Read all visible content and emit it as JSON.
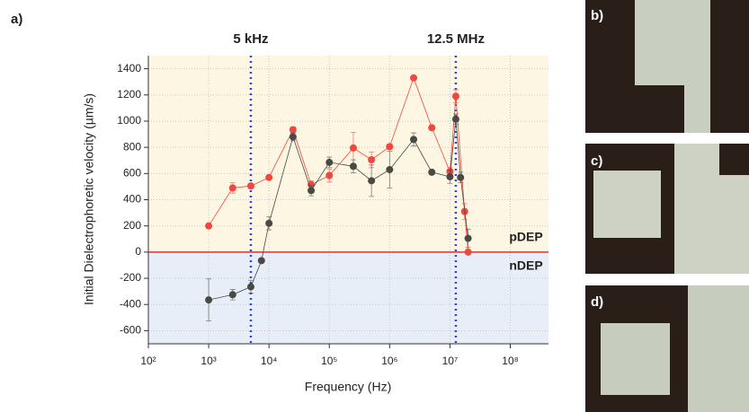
{
  "chart_data": {
    "type": "scatter",
    "panel_label": "a)",
    "xlabel": "Frequency (Hz)",
    "ylabel": "Initial Dielectrophoretic velocity (µm/s)",
    "xscale": "log",
    "xlim": [
      100,
      430000000
    ],
    "ylim": [
      -700,
      1500
    ],
    "xticks": [
      {
        "value": 100,
        "label": "10²"
      },
      {
        "value": 1000,
        "label": "10³"
      },
      {
        "value": 10000,
        "label": "10⁴"
      },
      {
        "value": 100000,
        "label": "10⁵"
      },
      {
        "value": 1000000,
        "label": "10⁶"
      },
      {
        "value": 10000000,
        "label": "10⁷"
      },
      {
        "value": 100000000,
        "label": "10⁸"
      }
    ],
    "yticks": [
      -600,
      -400,
      -200,
      0,
      200,
      400,
      600,
      800,
      1000,
      1200,
      1400
    ],
    "grid": true,
    "vlines": [
      5000,
      12500000
    ],
    "vline_labels": [
      "5 kHz",
      "12.5 MHz"
    ],
    "vline_color": "#3344dd",
    "hline": 0,
    "hline_color": "#e03030",
    "region_labels": [
      "pDEP",
      "nDEP"
    ],
    "region_colors": [
      "#fdf6e3",
      "#e8eef8"
    ],
    "series": [
      {
        "color": "#f0473e",
        "x": [
          1000,
          2500,
          5000,
          10000,
          25000,
          50000,
          100000,
          250000,
          500000,
          1000000,
          2500000,
          5000000,
          10000000,
          12500000,
          17500000,
          20000000
        ],
        "values": [
          200,
          490,
          505,
          570,
          935,
          515,
          585,
          795,
          705,
          805,
          1330,
          950,
          615,
          1190,
          310,
          0
        ],
        "errors": [
          0,
          40,
          20,
          0,
          20,
          30,
          50,
          120,
          60,
          20,
          0,
          0,
          30,
          50,
          60,
          0
        ]
      },
      {
        "color": "#4a4a44",
        "x": [
          1000,
          2500,
          5000,
          7500,
          10000,
          25000,
          50000,
          100000,
          250000,
          500000,
          1000000,
          2500000,
          5000000,
          10000000,
          12500000,
          15000000,
          20000000
        ],
        "values": [
          -365,
          -325,
          -265,
          -65,
          220,
          880,
          470,
          685,
          655,
          545,
          630,
          860,
          610,
          575,
          1015,
          570,
          105
        ],
        "errors": [
          160,
          40,
          50,
          0,
          50,
          30,
          40,
          40,
          50,
          120,
          140,
          50,
          0,
          50,
          40,
          40,
          70
        ]
      }
    ]
  },
  "images": [
    {
      "label": "b)"
    },
    {
      "label": "c)"
    },
    {
      "label": "d)"
    }
  ]
}
